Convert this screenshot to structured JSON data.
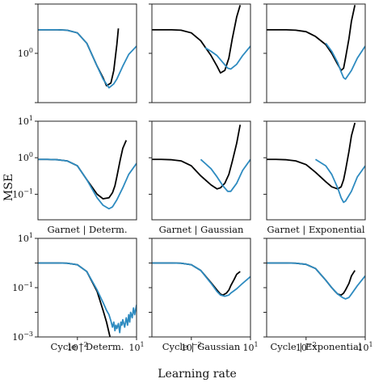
{
  "figure": {
    "xlabel": "Learning rate",
    "ylabel": "MSE",
    "x_tick_labels": [
      "10^-2",
      "10^1"
    ],
    "colors": {
      "series_a": "#000000",
      "series_b": "#2e8bc0"
    }
  },
  "chart_data": [
    {
      "type": "line",
      "row": 0,
      "col": 0,
      "title": "",
      "x_scale": "log",
      "y_scale": "log",
      "xlim": [
        0.0001,
        10
      ],
      "ylim": [
        0.1,
        10
      ],
      "y_tick_labels": [
        "10^0"
      ],
      "x_ticks_visible": false,
      "series": [
        {
          "color": "#000000",
          "x": [
            0.0001,
            0.0003,
            0.001,
            0.003,
            0.01,
            0.03,
            0.1,
            0.2,
            0.3,
            0.5,
            0.7,
            1.0,
            1.2
          ],
          "y": [
            3.0,
            3.0,
            3.0,
            2.95,
            2.6,
            1.6,
            0.55,
            0.32,
            0.22,
            0.25,
            0.45,
            1.5,
            3.2
          ]
        },
        {
          "color": "#2e8bc0",
          "x": [
            0.0001,
            0.0003,
            0.001,
            0.003,
            0.01,
            0.03,
            0.1,
            0.2,
            0.4,
            0.7,
            1.0,
            2.0,
            4.0,
            10
          ],
          "y": [
            3.0,
            3.0,
            3.0,
            2.95,
            2.6,
            1.6,
            0.55,
            0.3,
            0.2,
            0.24,
            0.3,
            0.55,
            0.95,
            1.4
          ]
        }
      ]
    },
    {
      "type": "line",
      "row": 0,
      "col": 1,
      "title": "",
      "x_scale": "log",
      "y_scale": "log",
      "xlim": [
        0.0001,
        10
      ],
      "ylim": [
        0.1,
        10
      ],
      "y_tick_labels": [],
      "x_ticks_visible": false,
      "series": [
        {
          "color": "#000000",
          "x": [
            0.0001,
            0.0003,
            0.001,
            0.003,
            0.01,
            0.03,
            0.1,
            0.2,
            0.3,
            0.5,
            0.8,
            1.2,
            2.0,
            3.0
          ],
          "y": [
            3.0,
            3.0,
            3.0,
            2.95,
            2.6,
            1.8,
            0.9,
            0.55,
            0.4,
            0.45,
            0.8,
            2.0,
            5.5,
            9.5
          ]
        },
        {
          "color": "#2e8bc0",
          "x": [
            0.05,
            0.1,
            0.2,
            0.4,
            0.7,
            1.0,
            2.0,
            4.0,
            10
          ],
          "y": [
            1.3,
            1.1,
            0.9,
            0.65,
            0.5,
            0.48,
            0.6,
            0.9,
            1.4
          ]
        }
      ]
    },
    {
      "type": "line",
      "row": 0,
      "col": 2,
      "title": "",
      "x_scale": "log",
      "y_scale": "log",
      "xlim": [
        0.0001,
        10
      ],
      "ylim": [
        0.1,
        10
      ],
      "y_tick_labels": [],
      "x_ticks_visible": false,
      "series": [
        {
          "color": "#000000",
          "x": [
            0.0001,
            0.0003,
            0.001,
            0.003,
            0.01,
            0.03,
            0.1,
            0.2,
            0.4,
            0.6,
            0.8,
            1.0,
            1.5,
            2.0,
            3.0
          ],
          "y": [
            3.0,
            3.0,
            3.0,
            2.95,
            2.75,
            2.2,
            1.5,
            1.0,
            0.6,
            0.45,
            0.5,
            0.8,
            2.0,
            4.5,
            9.5
          ]
        },
        {
          "color": "#2e8bc0",
          "x": [
            0.1,
            0.2,
            0.4,
            0.6,
            0.8,
            1.0,
            2.0,
            4.0,
            10
          ],
          "y": [
            1.6,
            1.1,
            0.65,
            0.42,
            0.32,
            0.3,
            0.45,
            0.8,
            1.4
          ]
        }
      ]
    },
    {
      "type": "line",
      "row": 1,
      "col": 0,
      "title": "Garnet | Determ.",
      "x_scale": "log",
      "y_scale": "log",
      "xlim": [
        0.0001,
        10
      ],
      "ylim": [
        0.02,
        10
      ],
      "y_tick_labels": [
        "10^1",
        "10^0",
        "10^-1"
      ],
      "x_ticks_visible": false,
      "series": [
        {
          "color": "#000000",
          "x": [
            0.0001,
            0.0003,
            0.001,
            0.003,
            0.01,
            0.03,
            0.1,
            0.2,
            0.4,
            0.6,
            0.8,
            1.0,
            1.5,
            2.0,
            3.0
          ],
          "y": [
            0.9,
            0.9,
            0.88,
            0.82,
            0.6,
            0.25,
            0.1,
            0.075,
            0.08,
            0.11,
            0.17,
            0.3,
            0.9,
            1.8,
            3.0
          ]
        },
        {
          "color": "#2e8bc0",
          "x": [
            0.0001,
            0.0003,
            0.001,
            0.003,
            0.01,
            0.03,
            0.1,
            0.2,
            0.4,
            0.6,
            1.0,
            2.0,
            4.0,
            10
          ],
          "y": [
            0.9,
            0.9,
            0.88,
            0.82,
            0.6,
            0.25,
            0.08,
            0.05,
            0.04,
            0.045,
            0.07,
            0.15,
            0.35,
            0.7
          ]
        }
      ]
    },
    {
      "type": "line",
      "row": 1,
      "col": 1,
      "title": "Garnet | Gaussian",
      "x_scale": "log",
      "y_scale": "log",
      "xlim": [
        0.0001,
        10
      ],
      "ylim": [
        0.02,
        10
      ],
      "y_tick_labels": [],
      "x_ticks_visible": false,
      "series": [
        {
          "color": "#000000",
          "x": [
            0.0001,
            0.0003,
            0.001,
            0.003,
            0.01,
            0.03,
            0.1,
            0.2,
            0.3,
            0.5,
            0.8,
            1.2,
            2.0,
            3.0
          ],
          "y": [
            0.9,
            0.9,
            0.88,
            0.82,
            0.6,
            0.32,
            0.18,
            0.14,
            0.15,
            0.2,
            0.35,
            0.8,
            2.5,
            8.0
          ]
        },
        {
          "color": "#2e8bc0",
          "x": [
            0.03,
            0.1,
            0.2,
            0.4,
            0.7,
            1.0,
            2.0,
            4.0,
            10
          ],
          "y": [
            0.9,
            0.5,
            0.3,
            0.17,
            0.12,
            0.12,
            0.2,
            0.45,
            0.9
          ]
        }
      ]
    },
    {
      "type": "line",
      "row": 1,
      "col": 2,
      "title": "Garnet | Exponential",
      "x_scale": "log",
      "y_scale": "log",
      "xlim": [
        0.0001,
        10
      ],
      "ylim": [
        0.02,
        10
      ],
      "y_tick_labels": [],
      "x_ticks_visible": false,
      "series": [
        {
          "color": "#000000",
          "x": [
            0.0001,
            0.0003,
            0.001,
            0.003,
            0.01,
            0.03,
            0.1,
            0.2,
            0.4,
            0.6,
            0.8,
            1.0,
            1.5,
            2.0,
            3.0
          ],
          "y": [
            0.9,
            0.9,
            0.88,
            0.82,
            0.65,
            0.4,
            0.22,
            0.16,
            0.14,
            0.16,
            0.25,
            0.45,
            1.5,
            4.0,
            9.0
          ]
        },
        {
          "color": "#2e8bc0",
          "x": [
            0.03,
            0.1,
            0.2,
            0.4,
            0.6,
            0.8,
            1.0,
            2.0,
            4.0,
            10
          ],
          "y": [
            0.9,
            0.6,
            0.35,
            0.15,
            0.08,
            0.06,
            0.065,
            0.12,
            0.3,
            0.6
          ]
        }
      ]
    },
    {
      "type": "line",
      "row": 2,
      "col": 0,
      "title": "Cycle | Determ.",
      "x_scale": "log",
      "y_scale": "log",
      "xlim": [
        0.0001,
        10
      ],
      "ylim": [
        0.001,
        10
      ],
      "y_tick_labels": [
        "10^1",
        "10^-1",
        "10^-3"
      ],
      "x_ticks_visible": true,
      "series": [
        {
          "color": "#000000",
          "x": [
            0.0001,
            0.0003,
            0.001,
            0.003,
            0.01,
            0.03,
            0.1,
            0.2,
            0.3,
            0.4,
            0.45
          ],
          "y": [
            1.0,
            1.0,
            1.0,
            0.98,
            0.85,
            0.45,
            0.07,
            0.012,
            0.004,
            0.0015,
            0.001
          ]
        },
        {
          "color": "#2e8bc0",
          "x": [
            0.0001,
            0.0003,
            0.001,
            0.003,
            0.01,
            0.03,
            0.1,
            0.2,
            0.3,
            0.4,
            0.5,
            0.6,
            0.7,
            0.8,
            0.9,
            1.0,
            1.2,
            1.4,
            1.6,
            1.8,
            2.0,
            2.5,
            3.0,
            3.5,
            4.0,
            4.5,
            5.0,
            6.0,
            7.0,
            8.0,
            10
          ],
          "y": [
            1.0,
            1.0,
            1.0,
            0.98,
            0.85,
            0.45,
            0.08,
            0.025,
            0.012,
            0.008,
            0.0045,
            0.0025,
            0.004,
            0.0018,
            0.003,
            0.0022,
            0.0035,
            0.0015,
            0.004,
            0.003,
            0.005,
            0.0025,
            0.006,
            0.003,
            0.008,
            0.004,
            0.01,
            0.006,
            0.015,
            0.008,
            0.02
          ]
        }
      ]
    },
    {
      "type": "line",
      "row": 2,
      "col": 1,
      "title": "Cycle | Gaussian",
      "x_scale": "log",
      "y_scale": "log",
      "xlim": [
        0.0001,
        10
      ],
      "ylim": [
        0.001,
        10
      ],
      "y_tick_labels": [],
      "x_ticks_visible": true,
      "series": [
        {
          "color": "#000000",
          "x": [
            0.0001,
            0.0003,
            0.001,
            0.003,
            0.01,
            0.03,
            0.1,
            0.2,
            0.3,
            0.4,
            0.6,
            0.8,
            1.0,
            1.5,
            2.0,
            3.0
          ],
          "y": [
            1.0,
            1.0,
            1.0,
            0.98,
            0.85,
            0.5,
            0.16,
            0.08,
            0.055,
            0.05,
            0.06,
            0.08,
            0.12,
            0.22,
            0.35,
            0.45
          ]
        },
        {
          "color": "#2e8bc0",
          "x": [
            0.0001,
            0.0003,
            0.001,
            0.003,
            0.01,
            0.03,
            0.1,
            0.2,
            0.3,
            0.5,
            0.8,
            1.0,
            2.0,
            4.0,
            10
          ],
          "y": [
            1.0,
            1.0,
            1.0,
            0.98,
            0.85,
            0.5,
            0.15,
            0.07,
            0.05,
            0.045,
            0.05,
            0.06,
            0.09,
            0.15,
            0.28
          ]
        }
      ]
    },
    {
      "type": "line",
      "row": 2,
      "col": 2,
      "title": "Cycle | Exponential",
      "x_scale": "log",
      "y_scale": "log",
      "xlim": [
        0.0001,
        10
      ],
      "ylim": [
        0.001,
        10
      ],
      "y_tick_labels": [],
      "x_ticks_visible": true,
      "series": [
        {
          "color": "#000000",
          "x": [
            0.0001,
            0.0003,
            0.001,
            0.003,
            0.01,
            0.03,
            0.1,
            0.2,
            0.3,
            0.4,
            0.6,
            0.8,
            1.0,
            1.5,
            2.0,
            3.0
          ],
          "y": [
            1.0,
            1.0,
            1.0,
            0.98,
            0.88,
            0.6,
            0.2,
            0.1,
            0.07,
            0.055,
            0.05,
            0.06,
            0.08,
            0.15,
            0.3,
            0.5
          ]
        },
        {
          "color": "#2e8bc0",
          "x": [
            0.0001,
            0.0003,
            0.001,
            0.003,
            0.01,
            0.03,
            0.1,
            0.2,
            0.4,
            0.7,
            1.0,
            1.5,
            2.0,
            4.0,
            10
          ],
          "y": [
            1.0,
            1.0,
            1.0,
            0.98,
            0.88,
            0.6,
            0.2,
            0.1,
            0.055,
            0.04,
            0.035,
            0.04,
            0.055,
            0.12,
            0.3
          ]
        }
      ]
    }
  ]
}
